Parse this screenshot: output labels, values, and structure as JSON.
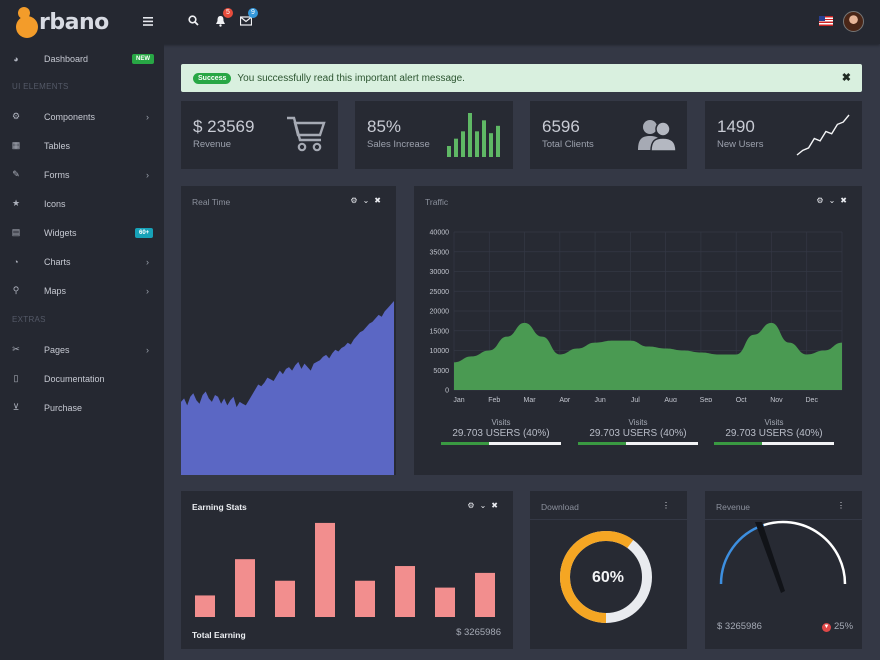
{
  "app": {
    "logo_text": "rbano",
    "logo_semantic": "orbano-logo"
  },
  "topbar": {
    "notifications_count": "5",
    "messages_count": "9",
    "notif_badge_color": "#e74c3c",
    "msg_badge_color": "#3498db"
  },
  "sidebar": {
    "items": [
      {
        "label": "Dashboard",
        "icon": "dashboard-icon",
        "badge": "NEW",
        "badge_color": "#28a745"
      },
      {
        "section": "UI ELEMENTS"
      },
      {
        "label": "Components",
        "icon": "components-icon",
        "has_children": true
      },
      {
        "label": "Tables",
        "icon": "table-icon"
      },
      {
        "label": "Forms",
        "icon": "edit-icon",
        "has_children": true
      },
      {
        "label": "Icons",
        "icon": "star-icon"
      },
      {
        "label": "Widgets",
        "icon": "calculator-icon",
        "badge": "60+",
        "badge_color": "#17a2b8"
      },
      {
        "label": "Charts",
        "icon": "pie-chart-icon",
        "has_children": true
      },
      {
        "label": "Maps",
        "icon": "map-marker-icon",
        "has_children": true
      },
      {
        "section": "EXTRAS"
      },
      {
        "label": "Pages",
        "icon": "paperclip-icon",
        "has_children": true
      },
      {
        "label": "Documentation",
        "icon": "file-icon"
      },
      {
        "label": "Purchase",
        "icon": "cart-icon"
      }
    ]
  },
  "alert": {
    "badge": "Success",
    "message": "You successfully read this important alert message.",
    "close": "✖"
  },
  "stats": [
    {
      "value": "$ 23569",
      "label": "Revenue",
      "icon": "cart-icon"
    },
    {
      "value": "85%",
      "label": "Sales Increase",
      "icon": "bar-sparkline-icon"
    },
    {
      "value": "6596",
      "label": "Total Clients",
      "icon": "users-icon"
    },
    {
      "value": "1490",
      "label": "New Users",
      "icon": "line-sparkline-icon"
    }
  ],
  "panels": {
    "realtime": {
      "title": "Real Time"
    },
    "traffic": {
      "title": "Traffic",
      "visits": [
        {
          "title": "Visits",
          "value": "29.703 USERS (40%)",
          "progress": 0.4
        },
        {
          "title": "Visits",
          "value": "29.703 USERS (40%)",
          "progress": 0.4
        },
        {
          "title": "Visits",
          "value": "29.703 USERS (40%)",
          "progress": 0.4
        }
      ]
    },
    "earning": {
      "title": "Earning Stats",
      "footer_label": "Total Earning",
      "footer_amount": "$ 3265986"
    },
    "download": {
      "title": "Download",
      "percent_label": "60%"
    },
    "revenue": {
      "title": "Revenue",
      "amount": "$ 3265986",
      "change": "25%",
      "change_direction": "down"
    }
  },
  "chart_data": [
    {
      "type": "area",
      "title": "Real Time",
      "color": "#5b67c4",
      "x": [
        0,
        1,
        2,
        3,
        4,
        5,
        6,
        7,
        8,
        9,
        10,
        11,
        12,
        13,
        14,
        15,
        16,
        17,
        18,
        19,
        20,
        21,
        22,
        23,
        24,
        25,
        26,
        27,
        28,
        29,
        30,
        31,
        32,
        33,
        34,
        35,
        36,
        37,
        38,
        39,
        40,
        41,
        42,
        43,
        44,
        45,
        46,
        47,
        48,
        49,
        50,
        51,
        52,
        53,
        54,
        55,
        56,
        57,
        58,
        59,
        60,
        61,
        62,
        63,
        64,
        65,
        66,
        67,
        68,
        69
      ],
      "values": [
        42,
        44,
        40,
        45,
        47,
        43,
        41,
        46,
        48,
        44,
        42,
        46,
        45,
        41,
        44,
        40,
        43,
        45,
        39,
        42,
        41,
        40,
        43,
        46,
        49,
        52,
        51,
        53,
        56,
        55,
        54,
        57,
        60,
        58,
        61,
        62,
        60,
        63,
        65,
        61,
        64,
        62,
        60,
        64,
        65,
        66,
        68,
        69,
        67,
        70,
        72,
        71,
        73,
        74,
        76,
        75,
        78,
        80,
        82,
        83,
        85,
        87,
        88,
        90,
        92,
        91,
        94,
        96,
        98,
        100
      ],
      "ylim": [
        0,
        150
      ]
    },
    {
      "type": "area",
      "title": "Traffic",
      "color": "#4a9a52",
      "categories": [
        "Jan",
        "Feb",
        "Mar",
        "Apr",
        "Jun",
        "Jul",
        "Aug",
        "Sep",
        "Oct",
        "Nov",
        "Dec"
      ],
      "x": [
        0,
        0.5,
        1,
        1.5,
        2,
        2.5,
        3,
        3.5,
        4,
        4.5,
        5,
        5.5,
        6,
        6.5,
        7,
        7.5,
        8,
        8.5,
        9,
        9.5,
        10,
        10.5,
        11
      ],
      "values": [
        7000,
        8500,
        10000,
        13500,
        17000,
        13500,
        9000,
        10500,
        12000,
        12500,
        12500,
        11000,
        10500,
        10000,
        9500,
        9000,
        9000,
        14000,
        17000,
        12000,
        9000,
        10000,
        12000
      ],
      "yticks": [
        0,
        5000,
        10000,
        15000,
        20000,
        25000,
        30000,
        35000,
        40000
      ],
      "ylim": [
        0,
        40000
      ]
    },
    {
      "type": "bar",
      "title": "Earning Stats",
      "color": "#f28e8e",
      "categories": [
        "1",
        "2",
        "3",
        "4",
        "5",
        "6",
        "7",
        "8"
      ],
      "values": [
        22,
        59,
        37,
        96,
        37,
        52,
        30,
        45
      ],
      "ylim": [
        0,
        100
      ]
    },
    {
      "type": "pie",
      "title": "Download",
      "values": [
        60,
        40
      ],
      "colors": [
        "#f5a623",
        "#e9ebef"
      ]
    },
    {
      "type": "gauge",
      "title": "Revenue",
      "value": 0.4,
      "colors": [
        "#3d8fe0",
        "#ffffff"
      ]
    },
    {
      "type": "bar",
      "title": "Sales Increase sparkline",
      "color": "#5fb865",
      "values": [
        6,
        10,
        14,
        24,
        14,
        20,
        13,
        17
      ],
      "ylim": [
        0,
        24
      ]
    },
    {
      "type": "line",
      "title": "New Users sparkline",
      "color": "#f4f5f7",
      "values": [
        0,
        4,
        6,
        14,
        12,
        20,
        18,
        26,
        28,
        34
      ]
    }
  ]
}
